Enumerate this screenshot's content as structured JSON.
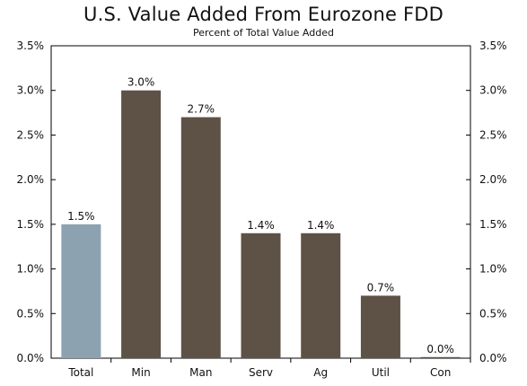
{
  "chart_data": {
    "type": "bar",
    "title": "U.S. Value Added From Eurozone FDD",
    "subtitle": "Percent of Total Value Added",
    "categories": [
      "Total",
      "Min",
      "Man",
      "Serv",
      "Ag",
      "Util",
      "Con"
    ],
    "values": [
      1.5,
      3.0,
      2.7,
      1.4,
      1.4,
      0.7,
      0.0
    ],
    "data_labels": [
      "1.5%",
      "3.0%",
      "2.7%",
      "1.4%",
      "1.4%",
      "0.7%",
      "0.0%"
    ],
    "bar_colors": [
      "#8ca2b1",
      "#5e5145",
      "#5e5145",
      "#5e5145",
      "#5e5145",
      "#5e5145",
      "#5e5145"
    ],
    "ylim": [
      0,
      3.5
    ],
    "yticks": [
      0,
      0.5,
      1.0,
      1.5,
      2.0,
      2.5,
      3.0,
      3.5
    ],
    "ytick_labels": [
      "0.0%",
      "0.5%",
      "1.0%",
      "1.5%",
      "2.0%",
      "2.5%",
      "3.0%",
      "3.5%"
    ],
    "y_axis_sides": "left and right",
    "grid": false,
    "legend": false
  }
}
